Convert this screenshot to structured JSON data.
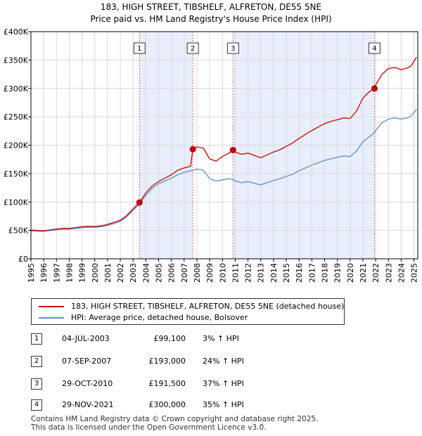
{
  "chart_data": {
    "type": "line",
    "title": "183, HIGH STREET, TIBSHELF, ALFRETON, DE55 5NE",
    "subtitle": "Price paid vs. HM Land Registry's House Price Index (HPI)",
    "xlabel": "",
    "ylabel": "",
    "xlim": [
      1995,
      2025.3
    ],
    "ylim": [
      0,
      400000
    ],
    "y_ticks": [
      0,
      50000,
      100000,
      150000,
      200000,
      250000,
      300000,
      350000,
      400000
    ],
    "y_tick_labels": [
      "£0",
      "£50K",
      "£100K",
      "£150K",
      "£200K",
      "£250K",
      "£300K",
      "£350K",
      "£400K"
    ],
    "x_ticks": [
      1995,
      1996,
      1997,
      1998,
      1999,
      2000,
      2001,
      2002,
      2003,
      2004,
      2005,
      2006,
      2007,
      2008,
      2009,
      2010,
      2011,
      2012,
      2013,
      2014,
      2015,
      2016,
      2017,
      2018,
      2019,
      2020,
      2021,
      2022,
      2023,
      2024,
      2025
    ],
    "x_tick_labels": [
      "1995",
      "1996",
      "1997",
      "1998",
      "1999",
      "2000",
      "2001",
      "2002",
      "2003",
      "2004",
      "2005",
      "2006",
      "2007",
      "2008",
      "2009",
      "2010",
      "2011",
      "2012",
      "2013",
      "2014",
      "2015",
      "2016",
      "2017",
      "2018",
      "2019",
      "2020",
      "2021",
      "2022",
      "2023",
      "2024",
      "2025"
    ],
    "grid": true,
    "shaded_periods": [
      [
        2003.5,
        2007.68
      ],
      [
        2010.83,
        2021.91
      ]
    ],
    "series": [
      {
        "name": "183, HIGH STREET, TIBSHELF, ALFRETON, DE55 5NE (detached house)",
        "color": "#cc0000",
        "points": [
          [
            1995.0,
            50500
          ],
          [
            1995.5,
            50000
          ],
          [
            1996.0,
            49500
          ],
          [
            1996.5,
            50800
          ],
          [
            1997.0,
            52500
          ],
          [
            1997.5,
            53800
          ],
          [
            1998.0,
            53500
          ],
          [
            1998.5,
            55000
          ],
          [
            1999.0,
            56500
          ],
          [
            1999.5,
            57200
          ],
          [
            2000.0,
            57000
          ],
          [
            2000.5,
            58000
          ],
          [
            2001.0,
            60500
          ],
          [
            2001.5,
            64000
          ],
          [
            2002.0,
            68000
          ],
          [
            2002.5,
            76000
          ],
          [
            2003.0,
            88000
          ],
          [
            2003.5,
            99100
          ],
          [
            2004.0,
            116000
          ],
          [
            2004.5,
            128000
          ],
          [
            2005.0,
            136000
          ],
          [
            2005.5,
            142000
          ],
          [
            2006.0,
            148000
          ],
          [
            2006.5,
            156000
          ],
          [
            2007.0,
            160000
          ],
          [
            2007.5,
            163000
          ],
          [
            2007.68,
            193000
          ],
          [
            2008.0,
            197000
          ],
          [
            2008.5,
            195000
          ],
          [
            2009.0,
            176000
          ],
          [
            2009.5,
            172000
          ],
          [
            2010.0,
            180000
          ],
          [
            2010.5,
            186000
          ],
          [
            2010.83,
            191500
          ],
          [
            2011.0,
            188000
          ],
          [
            2011.5,
            184000
          ],
          [
            2012.0,
            186000
          ],
          [
            2012.5,
            182000
          ],
          [
            2013.0,
            178000
          ],
          [
            2013.5,
            183000
          ],
          [
            2014.0,
            188000
          ],
          [
            2014.5,
            192000
          ],
          [
            2015.0,
            198000
          ],
          [
            2015.5,
            204000
          ],
          [
            2016.0,
            212000
          ],
          [
            2016.5,
            219000
          ],
          [
            2017.0,
            226000
          ],
          [
            2017.5,
            232000
          ],
          [
            2018.0,
            238000
          ],
          [
            2018.5,
            242000
          ],
          [
            2019.0,
            245000
          ],
          [
            2019.5,
            248000
          ],
          [
            2020.0,
            247000
          ],
          [
            2020.5,
            260000
          ],
          [
            2021.0,
            283000
          ],
          [
            2021.5,
            294000
          ],
          [
            2021.91,
            300000
          ],
          [
            2022.0,
            306000
          ],
          [
            2022.5,
            325000
          ],
          [
            2023.0,
            335000
          ],
          [
            2023.5,
            337000
          ],
          [
            2024.0,
            333000
          ],
          [
            2024.5,
            336000
          ],
          [
            2024.8,
            340000
          ],
          [
            2025.0,
            348000
          ],
          [
            2025.2,
            355000
          ]
        ]
      },
      {
        "name": "HPI: Average price, detached house, Bolsover",
        "color": "#5b8fd4",
        "points": [
          [
            1995.0,
            49000
          ],
          [
            1995.5,
            48500
          ],
          [
            1996.0,
            48200
          ],
          [
            1996.5,
            49500
          ],
          [
            1997.0,
            51000
          ],
          [
            1997.5,
            52200
          ],
          [
            1998.0,
            52000
          ],
          [
            1998.5,
            53300
          ],
          [
            1999.0,
            54800
          ],
          [
            1999.5,
            55500
          ],
          [
            2000.0,
            55300
          ],
          [
            2000.5,
            56300
          ],
          [
            2001.0,
            58700
          ],
          [
            2001.5,
            62000
          ],
          [
            2002.0,
            66000
          ],
          [
            2002.5,
            74000
          ],
          [
            2003.0,
            85500
          ],
          [
            2003.5,
            96200
          ],
          [
            2004.0,
            112000
          ],
          [
            2004.5,
            124000
          ],
          [
            2005.0,
            132000
          ],
          [
            2005.5,
            137000
          ],
          [
            2006.0,
            142000
          ],
          [
            2006.5,
            148000
          ],
          [
            2007.0,
            152000
          ],
          [
            2007.5,
            155000
          ],
          [
            2007.68,
            155600
          ],
          [
            2008.0,
            158000
          ],
          [
            2008.5,
            156000
          ],
          [
            2009.0,
            141000
          ],
          [
            2009.5,
            137000
          ],
          [
            2010.0,
            139000
          ],
          [
            2010.5,
            141000
          ],
          [
            2010.83,
            139800
          ],
          [
            2011.0,
            137000
          ],
          [
            2011.5,
            134000
          ],
          [
            2012.0,
            136000
          ],
          [
            2012.5,
            133000
          ],
          [
            2013.0,
            130000
          ],
          [
            2013.5,
            134000
          ],
          [
            2014.0,
            138000
          ],
          [
            2014.5,
            141000
          ],
          [
            2015.0,
            145000
          ],
          [
            2015.5,
            149000
          ],
          [
            2016.0,
            155000
          ],
          [
            2016.5,
            160000
          ],
          [
            2017.0,
            165000
          ],
          [
            2017.5,
            169000
          ],
          [
            2018.0,
            173000
          ],
          [
            2018.5,
            176000
          ],
          [
            2019.0,
            179000
          ],
          [
            2019.5,
            181000
          ],
          [
            2020.0,
            180000
          ],
          [
            2020.5,
            190000
          ],
          [
            2021.0,
            206000
          ],
          [
            2021.5,
            215000
          ],
          [
            2021.91,
            222200
          ],
          [
            2022.0,
            226000
          ],
          [
            2022.5,
            240000
          ],
          [
            2023.0,
            246000
          ],
          [
            2023.5,
            248000
          ],
          [
            2024.0,
            246000
          ],
          [
            2024.5,
            248000
          ],
          [
            2024.8,
            252000
          ],
          [
            2025.0,
            258000
          ],
          [
            2025.2,
            263000
          ]
        ]
      }
    ],
    "sales": [
      {
        "label": "1",
        "x": 2003.5,
        "price": 99100
      },
      {
        "label": "2",
        "x": 2007.68,
        "price": 193000
      },
      {
        "label": "3",
        "x": 2010.83,
        "price": 191500
      },
      {
        "label": "4",
        "x": 2021.91,
        "price": 300000
      }
    ]
  },
  "legend": {
    "property_label": "183, HIGH STREET, TIBSHELF, ALFRETON, DE55 5NE (detached house)",
    "hpi_label": "HPI: Average price, detached house, Bolsover",
    "property_color": "#cc0000",
    "hpi_color": "#5b8fd4"
  },
  "sales_table": [
    {
      "num": "1",
      "date": "04-JUL-2003",
      "price": "£99,100",
      "hpi": "3% ↑ HPI"
    },
    {
      "num": "2",
      "date": "07-SEP-2007",
      "price": "£193,000",
      "hpi": "24% ↑ HPI"
    },
    {
      "num": "3",
      "date": "29-OCT-2010",
      "price": "£191,500",
      "hpi": "37% ↑ HPI"
    },
    {
      "num": "4",
      "date": "29-NOV-2021",
      "price": "£300,000",
      "hpi": "35% ↑ HPI"
    }
  ],
  "footer": {
    "line1": "Contains HM Land Registry data © Crown copyright and database right 2025.",
    "line2": "This data is licensed under the Open Government Licence v3.0."
  }
}
